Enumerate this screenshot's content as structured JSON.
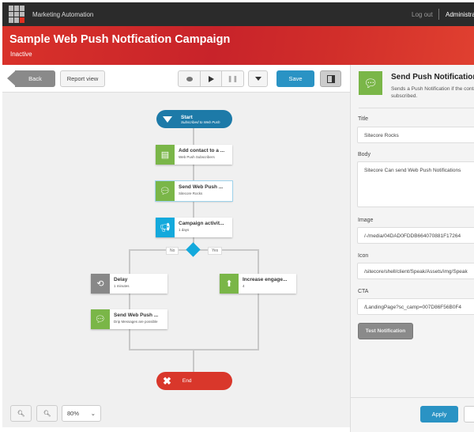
{
  "topbar": {
    "app_name": "Marketing Automation",
    "logout": "Log out",
    "user": "Administrator"
  },
  "header": {
    "title": "Sample Web Push Notfication Campaign",
    "status": "Inactive"
  },
  "toolbar": {
    "back": "Back",
    "report_view": "Report view",
    "save": "Save"
  },
  "canvas": {
    "start": {
      "title": "Start",
      "subtitle": "Subscribed to Web Push"
    },
    "nodes": [
      {
        "title": "Add contact to a ...",
        "subtitle": "Web Push Subscribers"
      },
      {
        "title": "Send Web Push ...",
        "subtitle": "Sitecore Rocks"
      },
      {
        "title": "Campaign activit...",
        "subtitle": "1 days"
      },
      {
        "title": "Delay",
        "subtitle": "1 minutes"
      },
      {
        "title": "Send Web Push ...",
        "subtitle": "Drip Messages are possible"
      },
      {
        "title": "Increase engage...",
        "subtitle": "4"
      }
    ],
    "branch": {
      "no": "No",
      "yes": "Yes"
    },
    "end": {
      "title": "End"
    },
    "zoom": "80%"
  },
  "panel": {
    "title": "Send Push Notification",
    "description": "Sends a Push Notification if the contact is subscribed.",
    "fields": [
      {
        "label": "Title",
        "value": "Sitecore Rocks"
      },
      {
        "label": "Body",
        "value": "Sitecore Can send Web Push Notifications"
      },
      {
        "label": "Image",
        "value": "/-/media/04DAD0FDDB664070881F17264"
      },
      {
        "label": "Icon",
        "value": "/sitecore/shell/client/Speak/Assets/img/Speak"
      },
      {
        "label": "CTA",
        "value": "/LandingPage?sc_camp=007D86F56B0F4"
      }
    ],
    "test_button": "Test Notification",
    "apply": "Apply"
  },
  "colors": {
    "green": "#7ab648",
    "blue": "#2a93c4",
    "start": "#1d7aa8",
    "end": "#d9372b",
    "gray": "#888888",
    "cyan": "#13a9dc"
  }
}
